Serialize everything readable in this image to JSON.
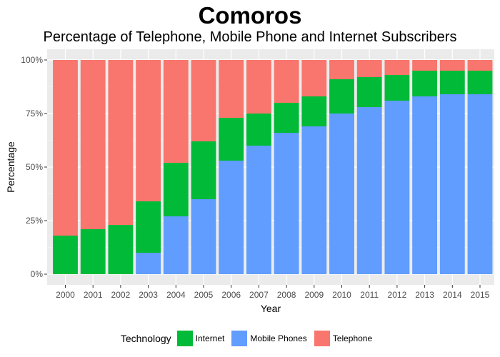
{
  "chart_data": {
    "type": "bar",
    "stacked": "percent",
    "title": "Comoros",
    "subtitle": "Percentage of Telephone, Mobile Phone and Internet Subscribers",
    "xlabel": "Year",
    "ylabel": "Percentage",
    "ylim": [
      0,
      100
    ],
    "yticks": [
      "0%",
      "25%",
      "50%",
      "75%",
      "100%"
    ],
    "categories": [
      "2000",
      "2001",
      "2002",
      "2003",
      "2004",
      "2005",
      "2006",
      "2007",
      "2008",
      "2009",
      "2010",
      "2011",
      "2012",
      "2013",
      "2014",
      "2015"
    ],
    "series": [
      {
        "name": "Mobile Phones",
        "color": "#619CFF",
        "values": [
          0,
          0,
          0,
          10,
          27,
          35,
          53,
          60,
          66,
          69,
          75,
          78,
          81,
          83,
          84,
          84
        ]
      },
      {
        "name": "Internet",
        "color": "#00BA38",
        "values": [
          18,
          21,
          23,
          24,
          25,
          27,
          20,
          15,
          14,
          14,
          16,
          14,
          12,
          12,
          11,
          11
        ]
      },
      {
        "name": "Telephone",
        "color": "#F8766D",
        "values": [
          82,
          79,
          77,
          66,
          48,
          38,
          27,
          25,
          20,
          17,
          9,
          8,
          7,
          5,
          5,
          5
        ]
      }
    ],
    "grid": true,
    "legend_position": "bottom",
    "legend": {
      "title": "Technology",
      "items": [
        {
          "label": "Internet",
          "color": "#00BA38"
        },
        {
          "label": "Mobile Phones",
          "color": "#619CFF"
        },
        {
          "label": "Telephone",
          "color": "#F8766D"
        }
      ]
    }
  }
}
